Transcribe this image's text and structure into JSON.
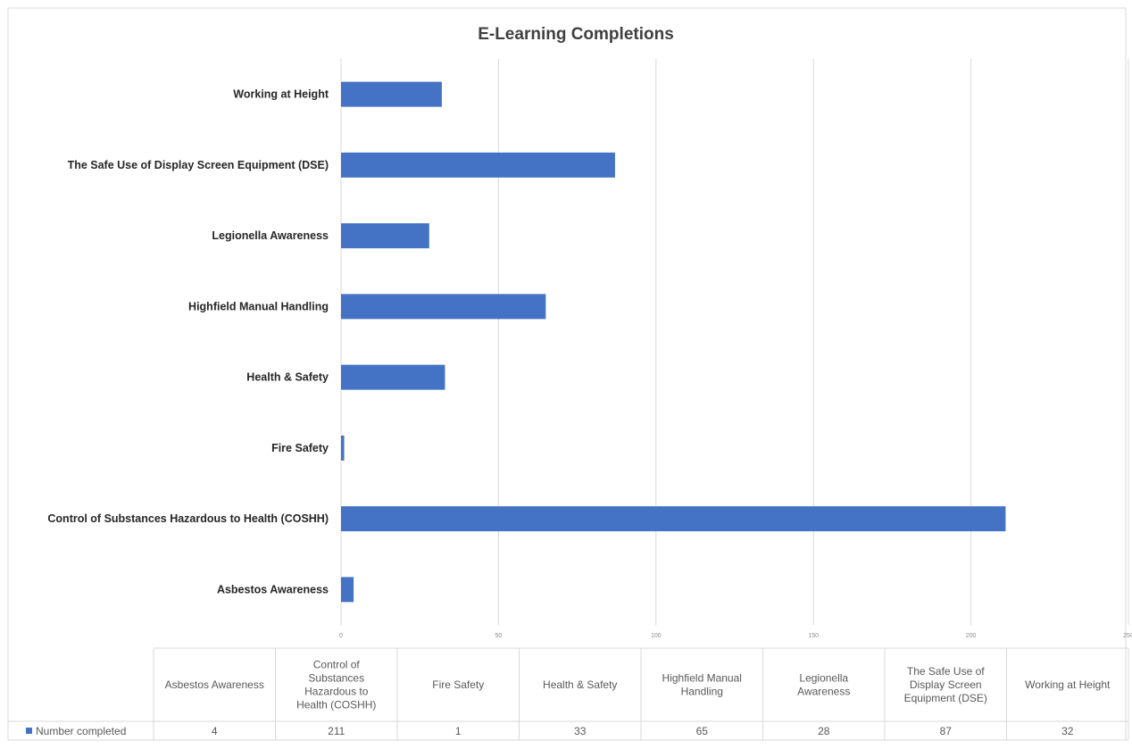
{
  "chart_data": {
    "type": "bar",
    "orientation": "horizontal",
    "title": "E-Learning Completions",
    "categories": [
      "Asbestos Awareness",
      "Control of Substances Hazardous to Health (COSHH)",
      "Fire Safety",
      "Health & Safety",
      "Highfield Manual Handling",
      "Legionella Awareness",
      "The Safe Use of Display Screen Equipment (DSE)",
      "Working at Height"
    ],
    "table_headers": [
      "Asbestos Awareness",
      "Control of Substances Hazardous to Health (COSHH)",
      "Fire Safety",
      "Health & Safety",
      "Highfield Manual Handling",
      "Legionella Awareness",
      "The Safe Use of Display Screen Equipment (DSE)",
      "Working at Height"
    ],
    "series": [
      {
        "name": "Number completed",
        "color": "#4472c4",
        "values": [
          4,
          211,
          1,
          33,
          65,
          28,
          87,
          32
        ]
      }
    ],
    "xlim": [
      0,
      250
    ],
    "x_ticks": [
      "0",
      "50",
      "100",
      "150",
      "200",
      "250"
    ],
    "grid": true,
    "legend": "data-table"
  }
}
